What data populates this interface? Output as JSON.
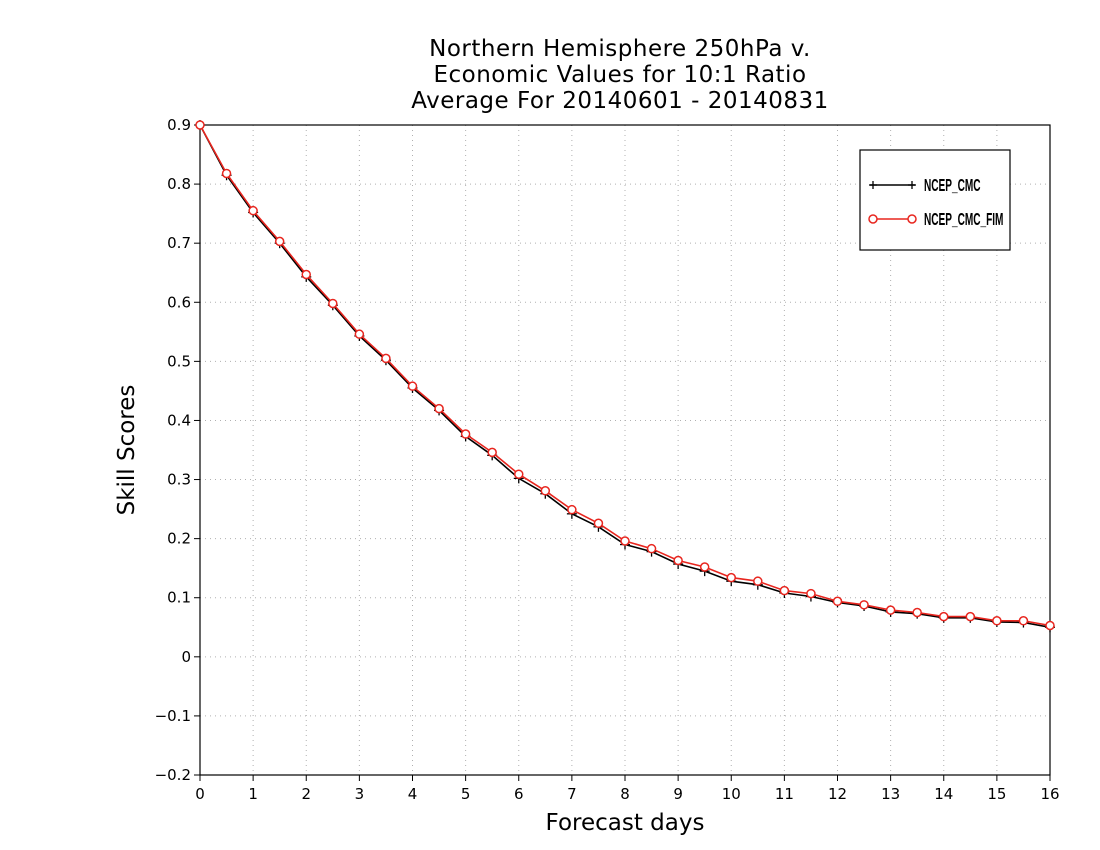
{
  "chart_data": {
    "type": "line",
    "title_lines": [
      "Northern Hemisphere 250hPa v.",
      "Economic Values for 10:1 Ratio",
      "Average For 20140601 - 20140831"
    ],
    "xlabel": "Forecast days",
    "ylabel": "Skill Scores",
    "xlim": [
      0,
      16
    ],
    "ylim": [
      -0.2,
      0.9
    ],
    "x_ticks": [
      0,
      1,
      2,
      3,
      4,
      5,
      6,
      7,
      8,
      9,
      10,
      11,
      12,
      13,
      14,
      15,
      16
    ],
    "y_ticks": [
      -0.2,
      -0.1,
      0,
      0.1,
      0.2,
      0.3,
      0.4,
      0.5,
      0.6,
      0.7,
      0.8,
      0.9
    ],
    "y_tick_labels": [
      "−0.2",
      "−0.1",
      "0",
      "0.1",
      "0.2",
      "0.3",
      "0.4",
      "0.5",
      "0.6",
      "0.7",
      "0.8",
      "0.9"
    ],
    "grid": true,
    "legend_position": "top-right",
    "x": [
      0,
      0.5,
      1,
      1.5,
      2,
      2.5,
      3,
      3.5,
      4,
      4.5,
      5,
      5.5,
      6,
      6.5,
      7,
      7.5,
      8,
      8.5,
      9,
      9.5,
      10,
      10.5,
      11,
      11.5,
      12,
      12.5,
      13,
      13.5,
      14,
      14.5,
      15,
      15.5,
      16
    ],
    "series": [
      {
        "name": "NCEP_CMC",
        "color": "#000000",
        "marker": "plus",
        "values": [
          0.9,
          0.815,
          0.752,
          0.7,
          0.643,
          0.595,
          0.543,
          0.502,
          0.455,
          0.417,
          0.373,
          0.341,
          0.302,
          0.276,
          0.242,
          0.22,
          0.19,
          0.178,
          0.157,
          0.145,
          0.128,
          0.122,
          0.108,
          0.102,
          0.092,
          0.086,
          0.076,
          0.073,
          0.066,
          0.066,
          0.059,
          0.058,
          0.05
        ]
      },
      {
        "name": "NCEP_CMC_FIM",
        "color": "#e8261f",
        "marker": "circle",
        "values": [
          0.9,
          0.818,
          0.755,
          0.703,
          0.647,
          0.598,
          0.546,
          0.505,
          0.458,
          0.42,
          0.377,
          0.346,
          0.309,
          0.281,
          0.249,
          0.226,
          0.196,
          0.183,
          0.163,
          0.152,
          0.134,
          0.128,
          0.112,
          0.107,
          0.094,
          0.088,
          0.079,
          0.075,
          0.068,
          0.068,
          0.061,
          0.061,
          0.053
        ]
      }
    ]
  }
}
